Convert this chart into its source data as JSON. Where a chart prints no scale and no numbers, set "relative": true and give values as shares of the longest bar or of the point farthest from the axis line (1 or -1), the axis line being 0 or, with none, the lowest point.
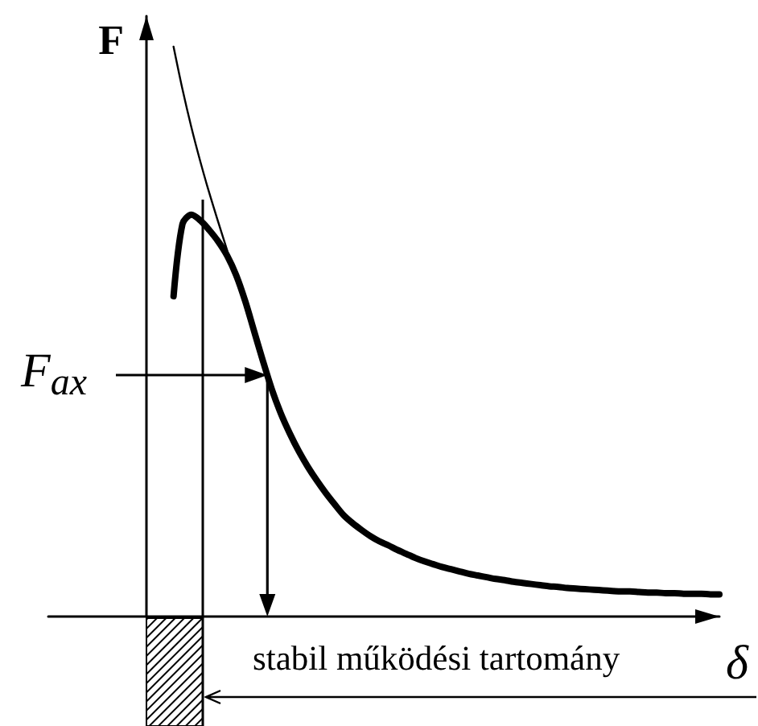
{
  "chart_data": {
    "type": "line",
    "relative": true,
    "xlabel": "δ",
    "ylabel": "F",
    "categories": [
      null,
      null,
      null,
      null,
      null,
      null,
      null,
      null,
      null,
      null,
      null,
      null,
      null,
      null,
      null,
      null,
      null,
      null,
      null,
      null,
      null,
      null,
      null,
      null,
      null,
      null,
      null,
      null,
      null,
      null,
      null,
      null,
      null,
      null,
      null,
      null,
      null,
      null,
      null,
      null,
      null,
      null,
      null,
      null,
      null,
      null,
      null,
      null,
      null,
      null,
      null,
      null,
      null,
      null,
      null,
      null,
      null,
      null,
      null,
      null,
      null,
      null,
      null,
      null,
      null,
      null,
      null,
      null,
      null,
      null,
      null,
      null,
      null,
      null,
      null,
      null
    ],
    "series": [
      {
        "color": "#000000",
        "values": [
          null,
          null,
          null,
          null,
          null,
          null,
          null,
          null,
          null,
          null,
          null,
          null,
          null,
          null,
          1.0,
          0.925,
          0.858,
          0.798,
          0.743,
          0.692,
          0.642,
          null,
          null,
          null,
          null,
          null,
          null,
          null,
          null,
          null,
          null,
          null,
          null,
          null,
          null,
          null,
          null,
          null,
          null,
          null,
          null,
          null,
          null,
          null,
          null,
          null,
          null,
          null,
          null,
          null,
          null,
          null,
          null,
          null,
          null,
          null,
          null,
          null,
          null,
          null,
          null,
          null,
          null,
          null,
          null,
          null,
          null,
          null,
          null,
          null,
          null,
          null,
          null,
          null,
          null,
          null
        ]
      },
      {
        "color": "#000000",
        "values": [
          null,
          null,
          null,
          null,
          null,
          null,
          null,
          null,
          null,
          null,
          null,
          null,
          null,
          null,
          0.562,
          0.689,
          0.705,
          0.695,
          0.678,
          0.658,
          0.633,
          0.599,
          0.554,
          0.501,
          0.448,
          0.398,
          0.356,
          0.321,
          0.29,
          0.263,
          0.239,
          0.217,
          0.197,
          0.178,
          0.164,
          0.152,
          0.141,
          0.132,
          0.125,
          0.117,
          0.11,
          0.103,
          0.097,
          0.092,
          0.087,
          0.083,
          0.079,
          0.075,
          0.072,
          0.069,
          0.066,
          0.064,
          0.061,
          0.059,
          0.057,
          0.055,
          0.053,
          0.052,
          0.05,
          0.049,
          0.048,
          0.047,
          0.046,
          0.045,
          0.044,
          0.044,
          0.043,
          0.042,
          0.042,
          0.041,
          0.041,
          0.04,
          0.04,
          0.04,
          0.039,
          0.039
        ]
      }
    ],
    "annotations": [
      "F$_{ax}$",
      "stabil működési tartomány"
    ]
  }
}
